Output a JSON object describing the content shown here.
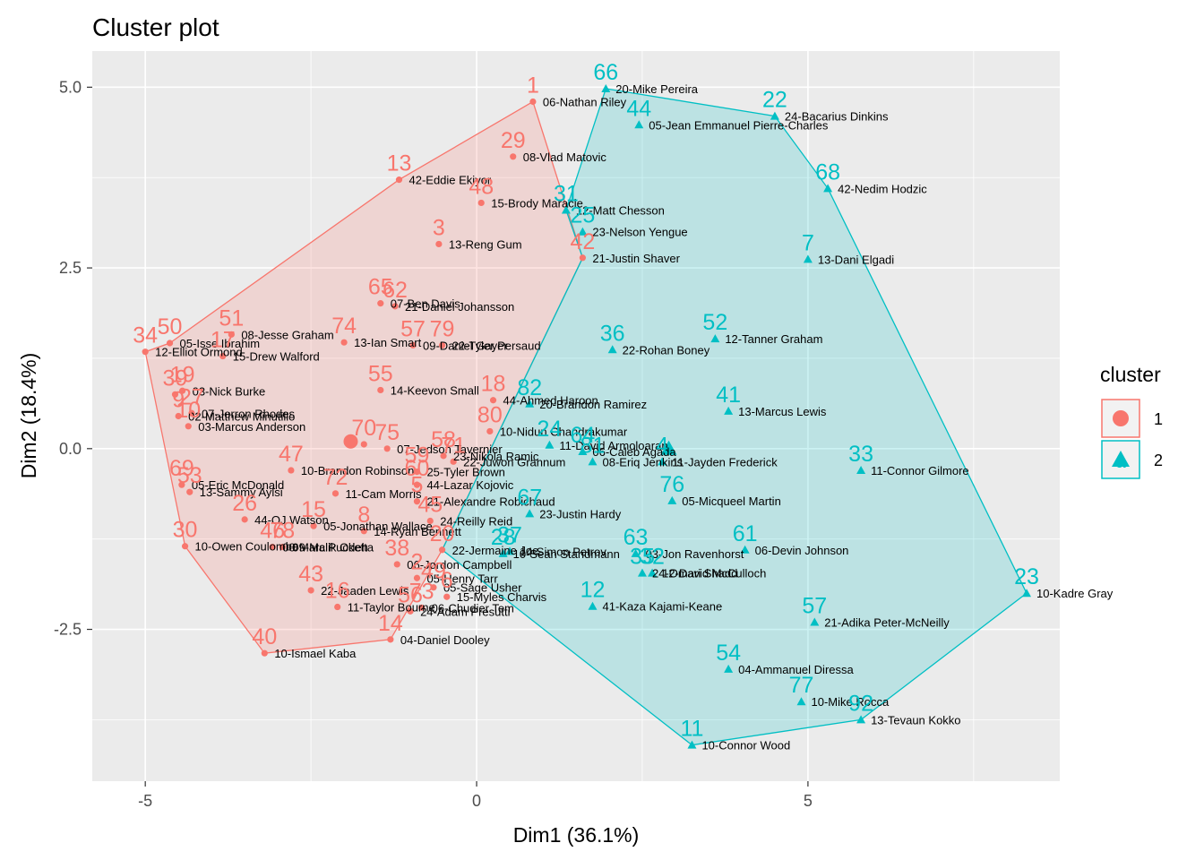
{
  "chart_data": {
    "type": "scatter",
    "title": "Cluster plot",
    "xlabel": "Dim1 (36.1%)",
    "ylabel": "Dim2 (18.4%)",
    "xlim": [
      -5.8,
      8.8
    ],
    "ylim": [
      -4.6,
      5.5
    ],
    "xticks": [
      -5,
      0,
      5
    ],
    "yticks": [
      -2.5,
      0.0,
      2.5,
      5.0
    ],
    "xtick_labels": [
      "-5",
      "0",
      "5"
    ],
    "ytick_labels": [
      "-2.5",
      "0.0",
      "2.5",
      "5.0"
    ],
    "grid": true,
    "legend": {
      "title": "cluster",
      "placement": "right",
      "entries": [
        "1",
        "2"
      ]
    },
    "colors": {
      "1": "#F8766D",
      "2": "#00BFC4"
    },
    "centers": [
      {
        "cluster": "1",
        "x": -1.9,
        "y": 0.1
      },
      {
        "cluster": "2",
        "x": 2.9,
        "y": 0.0
      }
    ],
    "points": [
      {
        "id": "1",
        "label": "06-Nathan Riley",
        "cluster": "1",
        "x": 0.85,
        "y": 4.8
      },
      {
        "id": "29",
        "label": "08-Vlad Matovic",
        "cluster": "1",
        "x": 0.55,
        "y": 4.04
      },
      {
        "id": "13",
        "label": "42-Eddie Ekiyor",
        "cluster": "1",
        "x": -1.17,
        "y": 3.72
      },
      {
        "id": "48",
        "label": "15-Brody Maracle",
        "cluster": "1",
        "x": 0.07,
        "y": 3.4
      },
      {
        "id": "3",
        "label": "13-Reng Gum",
        "cluster": "1",
        "x": -0.57,
        "y": 2.83
      },
      {
        "id": "42",
        "label": "21-Justin Shaver",
        "cluster": "1",
        "x": 1.6,
        "y": 2.64
      },
      {
        "id": "65",
        "label": "07-Ben Davis",
        "cluster": "1",
        "x": -1.45,
        "y": 2.01
      },
      {
        "id": "62",
        "label": "21-Daniel Johansson",
        "cluster": "1",
        "x": -1.23,
        "y": 1.97
      },
      {
        "id": "50",
        "label": "05-Isse Ibrahim",
        "cluster": "1",
        "x": -4.63,
        "y": 1.46
      },
      {
        "id": "34",
        "label": "12-Elliot Ormond",
        "cluster": "1",
        "x": -5.0,
        "y": 1.34
      },
      {
        "id": "51",
        "label": "08-Jesse Graham",
        "cluster": "1",
        "x": -3.7,
        "y": 1.58
      },
      {
        "id": "17",
        "label": "15-Drew Walford",
        "cluster": "1",
        "x": -3.83,
        "y": 1.28
      },
      {
        "id": "74",
        "label": "13-Ian Smart",
        "cluster": "1",
        "x": -2.0,
        "y": 1.47
      },
      {
        "id": "57",
        "label": "09-Daniel Gayer",
        "cluster": "1",
        "x": -0.96,
        "y": 1.43
      },
      {
        "id": "79",
        "label": "22-Tyler Persaud",
        "cluster": "1",
        "x": -0.52,
        "y": 1.43
      },
      {
        "id": "19",
        "label": "03-Nick Burke",
        "cluster": "1",
        "x": -4.44,
        "y": 0.8
      },
      {
        "id": "55",
        "label": "14-Keevon Small",
        "cluster": "1",
        "x": -1.45,
        "y": 0.81
      },
      {
        "id": "18",
        "label": "44-Ahmed Haroon",
        "cluster": "1",
        "x": 0.25,
        "y": 0.67
      },
      {
        "id": "80",
        "label": "10-Nidun Chandrakumar",
        "cluster": "1",
        "x": 0.2,
        "y": 0.24
      },
      {
        "id": "39",
        "label": "",
        "cluster": "1",
        "x": -4.55,
        "y": 0.75
      },
      {
        "id": "27",
        "label": "07-Jerron Rhodes",
        "cluster": "1",
        "x": -4.3,
        "y": 0.49
      },
      {
        "id": "9",
        "label": "02-Matthew Minutillo",
        "cluster": "1",
        "x": -4.5,
        "y": 0.45
      },
      {
        "id": "10",
        "label": "03-Marcus Anderson",
        "cluster": "1",
        "x": -4.35,
        "y": 0.31
      },
      {
        "id": "75",
        "label": "07-Jedson Tavernier",
        "cluster": "1",
        "x": -1.35,
        "y": 0.0
      },
      {
        "id": "70",
        "label": "",
        "cluster": "1",
        "x": -1.7,
        "y": 0.06
      },
      {
        "id": "58",
        "label": "23-Nikola Ramic",
        "cluster": "1",
        "x": -0.5,
        "y": -0.1
      },
      {
        "id": "47",
        "label": "10-Brandon Robinson",
        "cluster": "1",
        "x": -2.8,
        "y": -0.3
      },
      {
        "id": "71",
        "label": "22-Juwon Grannum",
        "cluster": "1",
        "x": -0.35,
        "y": -0.18
      },
      {
        "id": "72",
        "label": "11-Cam Morris",
        "cluster": "1",
        "x": -2.13,
        "y": -0.62
      },
      {
        "id": "59",
        "label": "25-Tyler Brown",
        "cluster": "1",
        "x": -0.9,
        "y": -0.32
      },
      {
        "id": "60",
        "label": "44-Lazar Kojovic",
        "cluster": "1",
        "x": -0.9,
        "y": -0.5
      },
      {
        "id": "69",
        "label": "05-Eric McDonald",
        "cluster": "1",
        "x": -4.45,
        "y": -0.5
      },
      {
        "id": "53",
        "label": "13-Sammy Aylsi",
        "cluster": "1",
        "x": -4.33,
        "y": -0.6
      },
      {
        "id": "26",
        "label": "44-OJ Watson",
        "cluster": "1",
        "x": -3.5,
        "y": -0.98
      },
      {
        "id": "15",
        "label": "05-Jonathan Wallace",
        "cluster": "1",
        "x": -2.46,
        "y": -1.07
      },
      {
        "id": "8",
        "label": "14-Ryan Bennett",
        "cluster": "1",
        "x": -1.7,
        "y": -1.14
      },
      {
        "id": "5",
        "label": "21-Alexandre Robichaud",
        "cluster": "1",
        "x": -0.9,
        "y": -0.73
      },
      {
        "id": "45",
        "label": "24-Reilly Reid",
        "cluster": "1",
        "x": -0.7,
        "y": -1.0
      },
      {
        "id": "30",
        "label": "10-Owen Coulombe",
        "cluster": "1",
        "x": -4.4,
        "y": -1.35
      },
      {
        "id": "46",
        "label": "00-Marc Pucketta",
        "cluster": "1",
        "x": -3.08,
        "y": -1.36
      },
      {
        "id": "78",
        "label": "09-Malik Odeh",
        "cluster": "1",
        "x": -2.93,
        "y": -1.36
      },
      {
        "id": "38",
        "label": "06-Jordon Campbell",
        "cluster": "1",
        "x": -1.2,
        "y": -1.6
      },
      {
        "id": "20",
        "label": "22-Jermaine Joe",
        "cluster": "1",
        "x": -0.52,
        "y": -1.4
      },
      {
        "id": "43",
        "label": "22-Jaaden Lewis",
        "cluster": "1",
        "x": -2.5,
        "y": -1.96
      },
      {
        "id": "16",
        "label": "11-Taylor Bourne",
        "cluster": "1",
        "x": -2.1,
        "y": -2.19
      },
      {
        "id": "2",
        "label": "05-Henry Tarr",
        "cluster": "1",
        "x": -0.9,
        "y": -1.79
      },
      {
        "id": "49",
        "label": "05-Sage Usher",
        "cluster": "1",
        "x": -0.65,
        "y": -1.92
      },
      {
        "id": "6",
        "label": "15-Myles Charvis",
        "cluster": "1",
        "x": -0.45,
        "y": -2.05
      },
      {
        "id": "56",
        "label": "24-Adam Presutti",
        "cluster": "1",
        "x": -1.0,
        "y": -2.25
      },
      {
        "id": "73",
        "label": "06-Chudier Tem",
        "cluster": "1",
        "x": -0.83,
        "y": -2.2
      },
      {
        "id": "14",
        "label": "04-Daniel Dooley",
        "cluster": "1",
        "x": -1.3,
        "y": -2.64
      },
      {
        "id": "40",
        "label": "10-Ismael Kaba",
        "cluster": "1",
        "x": -3.2,
        "y": -2.83
      },
      {
        "id": "66",
        "label": "20-Mike Pereira",
        "cluster": "2",
        "x": 1.95,
        "y": 4.98
      },
      {
        "id": "44",
        "label": "05-Jean Emmanuel Pierre-Charles",
        "cluster": "2",
        "x": 2.45,
        "y": 4.48
      },
      {
        "id": "22",
        "label": "24-Bacarius Dinkins",
        "cluster": "2",
        "x": 4.5,
        "y": 4.6
      },
      {
        "id": "68",
        "label": "42-Nedim Hodzic",
        "cluster": "2",
        "x": 5.3,
        "y": 3.6
      },
      {
        "id": "31",
        "label": "12-Matt Chesson",
        "cluster": "2",
        "x": 1.35,
        "y": 3.3
      },
      {
        "id": "25",
        "label": "23-Nelson Yengue",
        "cluster": "2",
        "x": 1.6,
        "y": 3.0
      },
      {
        "id": "7",
        "label": "13-Dani Elgadi",
        "cluster": "2",
        "x": 5.0,
        "y": 2.62
      },
      {
        "id": "52",
        "label": "12-Tanner Graham",
        "cluster": "2",
        "x": 3.6,
        "y": 1.52
      },
      {
        "id": "36",
        "label": "22-Rohan Boney",
        "cluster": "2",
        "x": 2.05,
        "y": 1.37
      },
      {
        "id": "82",
        "label": "20-Brandon Ramirez",
        "cluster": "2",
        "x": 0.8,
        "y": 0.62
      },
      {
        "id": "41",
        "label": "13-Marcus Lewis",
        "cluster": "2",
        "x": 3.8,
        "y": 0.52
      },
      {
        "id": "24",
        "label": "11-David Armoloaran",
        "cluster": "2",
        "x": 1.1,
        "y": 0.05
      },
      {
        "id": "64",
        "label": "06-Caleb Agada",
        "cluster": "2",
        "x": 1.6,
        "y": -0.04
      },
      {
        "id": "81",
        "label": "08-Eriq Jenkins",
        "cluster": "2",
        "x": 1.75,
        "y": -0.18
      },
      {
        "id": "4",
        "label": "11-Jayden Frederick",
        "cluster": "2",
        "x": 2.8,
        "y": -0.18
      },
      {
        "id": "33",
        "label": "11-Connor Gilmore",
        "cluster": "2",
        "x": 5.8,
        "y": -0.3
      },
      {
        "id": "76",
        "label": "05-Micqueel Martin",
        "cluster": "2",
        "x": 2.95,
        "y": -0.72
      },
      {
        "id": "67",
        "label": "23-Justin Hardy",
        "cluster": "2",
        "x": 0.8,
        "y": -0.9
      },
      {
        "id": "28",
        "label": "10-Sean Standmann",
        "cluster": "2",
        "x": 0.4,
        "y": -1.45
      },
      {
        "id": "54",
        "label": "04-Ammanuel Diressa",
        "cluster": "2",
        "x": 3.8,
        "y": -3.05
      },
      {
        "id": "63",
        "label": "03-Jon Ravenhorst",
        "cluster": "2",
        "x": 2.4,
        "y": -1.45
      },
      {
        "id": "35",
        "label": "24-Omari Shadd",
        "cluster": "2",
        "x": 2.5,
        "y": -1.72
      },
      {
        "id": "32",
        "label": "12-David McCulloch",
        "cluster": "2",
        "x": 2.65,
        "y": -1.72
      },
      {
        "id": "61",
        "label": "06-Devin Johnson",
        "cluster": "2",
        "x": 4.05,
        "y": -1.4
      },
      {
        "id": "12",
        "label": "41-Kaza Kajami-Keane",
        "cluster": "2",
        "x": 1.75,
        "y": -2.18
      },
      {
        "id": "57",
        "label": "21-Adika Peter-McNeilly",
        "cluster": "2",
        "x": 5.1,
        "y": -2.4
      },
      {
        "id": "23",
        "label": "10-Kadre Gray",
        "cluster": "2",
        "x": 8.3,
        "y": -2.0
      },
      {
        "id": "77",
        "label": "10-Mike Rocca",
        "cluster": "2",
        "x": 4.9,
        "y": -3.5
      },
      {
        "id": "92",
        "label": "13-Tevaun Kokko",
        "cluster": "2",
        "x": 5.8,
        "y": -3.75
      },
      {
        "id": "11",
        "label": "10-Connor Wood",
        "cluster": "2",
        "x": 3.25,
        "y": -4.1
      },
      {
        "id": "37",
        "label": "14-Simon Petrov",
        "cluster": "2",
        "x": 0.5,
        "y": -1.42
      }
    ],
    "hulls": [
      {
        "cluster": "1",
        "ids": [
          "1",
          "42",
          "20",
          "14",
          "40",
          "30",
          "34",
          "50",
          "13"
        ]
      },
      {
        "cluster": "2",
        "ids": [
          "66",
          "22",
          "68",
          "23",
          "92",
          "11",
          "20",
          "42",
          "31"
        ]
      }
    ]
  }
}
